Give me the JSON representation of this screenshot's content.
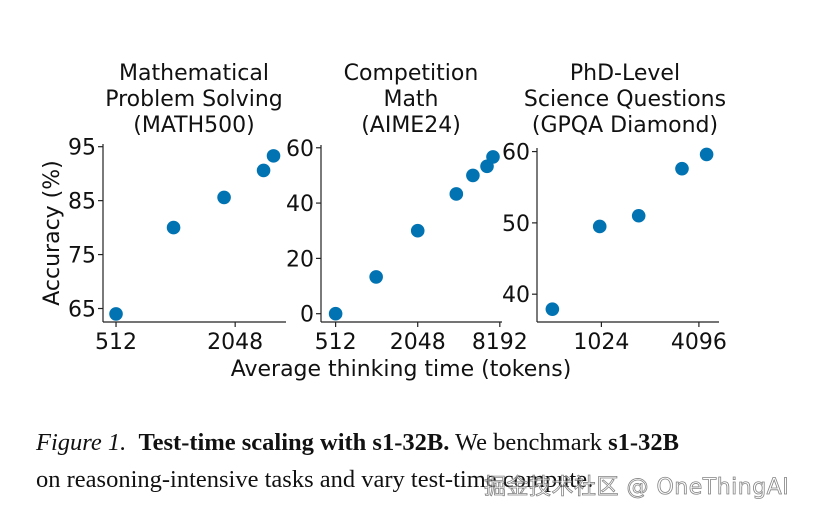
{
  "figure": {
    "y_axis_label": "Accuracy (%)",
    "x_axis_label": "Average thinking time (tokens)",
    "marker_color": "#0173B2"
  },
  "chart_data": [
    {
      "type": "scatter",
      "title_lines": [
        "Mathematical",
        "Problem Solving",
        "(MATH500)"
      ],
      "xscale": "log2",
      "xlim": [
        440,
        3700
      ],
      "ylim": [
        62.5,
        95.5
      ],
      "xticks": [
        512,
        2048
      ],
      "xtick_labels": [
        "512",
        "2048"
      ],
      "yticks": [
        65,
        75,
        85,
        95
      ],
      "ytick_labels": [
        "65",
        "75",
        "85",
        "95"
      ],
      "x": [
        512,
        1000,
        1800,
        2850,
        3200
      ],
      "y": [
        64.0,
        80.0,
        85.6,
        90.6,
        93.3
      ],
      "grid": false
    },
    {
      "type": "scatter",
      "title_lines": [
        "Competition",
        "Math",
        "(AIME24)"
      ],
      "xscale": "log2",
      "xlim": [
        400,
        8500
      ],
      "ylim": [
        -3,
        61
      ],
      "xticks": [
        512,
        2048,
        8192
      ],
      "xtick_labels": [
        "512",
        "2048",
        "8192"
      ],
      "yticks": [
        0,
        20,
        40,
        60
      ],
      "ytick_labels": [
        "0",
        "20",
        "40",
        "60"
      ],
      "x": [
        512,
        1015,
        2048,
        3930,
        5200,
        6600,
        7300
      ],
      "y": [
        0.0,
        13.3,
        30.0,
        43.3,
        50.0,
        53.3,
        56.7
      ],
      "grid": false
    },
    {
      "type": "scatter",
      "title_lines": [
        "PhD-Level",
        "Science Questions",
        "(GPQA Diamond)",
        ""
      ],
      "xscale": "log2",
      "xlim": [
        410,
        5450
      ],
      "ylim": [
        36.1,
        60.5
      ],
      "xticks": [
        1024,
        4096
      ],
      "xtick_labels": [
        "1024",
        "4096"
      ],
      "yticks": [
        40,
        50,
        60
      ],
      "ytick_labels": [
        "40",
        "50",
        "60"
      ],
      "x": [
        510,
        1000,
        1740,
        3220,
        4570
      ],
      "y": [
        37.9,
        49.5,
        51.0,
        57.6,
        59.6
      ],
      "grid": false
    }
  ],
  "caption": {
    "figure_label": "Figure 1.",
    "bold_title": "Test-time scaling with s1-32B.",
    "text_1": " We benchmark ",
    "bold_model": "s1-32B",
    "line_2": "on reasoning-intensive tasks and vary test-time compute."
  },
  "watermark": "掘金技术社区 @ OneThingAI"
}
